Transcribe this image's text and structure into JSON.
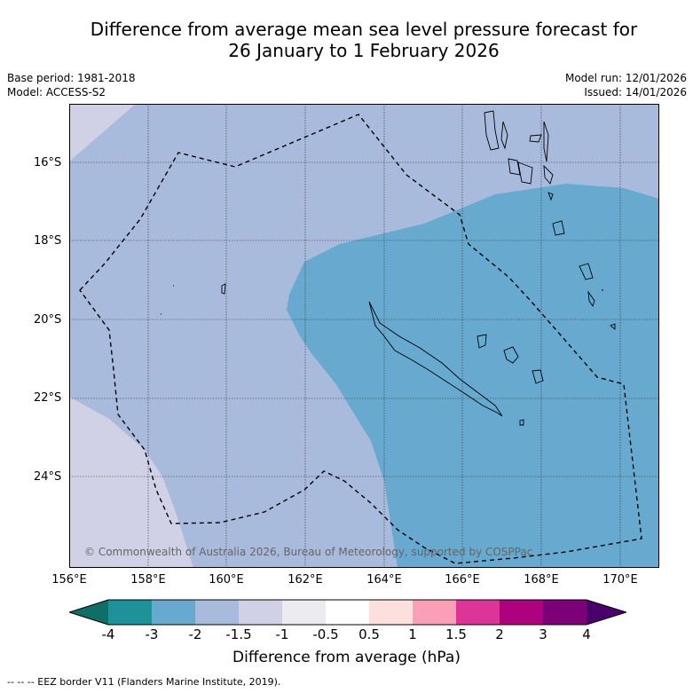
{
  "title": {
    "line1": "Difference from average mean sea level pressure forecast for",
    "line2": "26 January to 1 February 2026"
  },
  "meta": {
    "base_period": "Base period: 1981-2018",
    "model": "Model: ACCESS-S2",
    "model_run": "Model run: 12/01/2026",
    "issued": "Issued: 14/01/2026"
  },
  "axes": {
    "lat_labels": [
      "16°S",
      "18°S",
      "20°S",
      "22°S",
      "24°S"
    ],
    "lon_labels": [
      "156°E",
      "158°E",
      "160°E",
      "162°E",
      "164°E",
      "166°E",
      "168°E",
      "170°E"
    ]
  },
  "copyright": "© Commonwealth of Australia 2026, Bureau of Meteorology, supported by COSPPac",
  "colorbar": {
    "ticks": [
      "-4",
      "-3",
      "-2",
      "-1.5",
      "-1",
      "-0.5",
      "0.5",
      "1",
      "1.5",
      "2",
      "3",
      "4"
    ],
    "label": "Difference from average (hPa)",
    "colors": [
      "#0f6e67",
      "#1e9199",
      "#67a9cf",
      "#a8bbdc",
      "#d0d1e6",
      "#ececf0",
      "#ffffff",
      "#fde0dd",
      "#fa9fb5",
      "#dd3497",
      "#ae017e",
      "#7a0177",
      "#49006a"
    ]
  },
  "footer": "-- -- -- EEZ border V11 (Flanders Marine Institute, 2019)."
}
